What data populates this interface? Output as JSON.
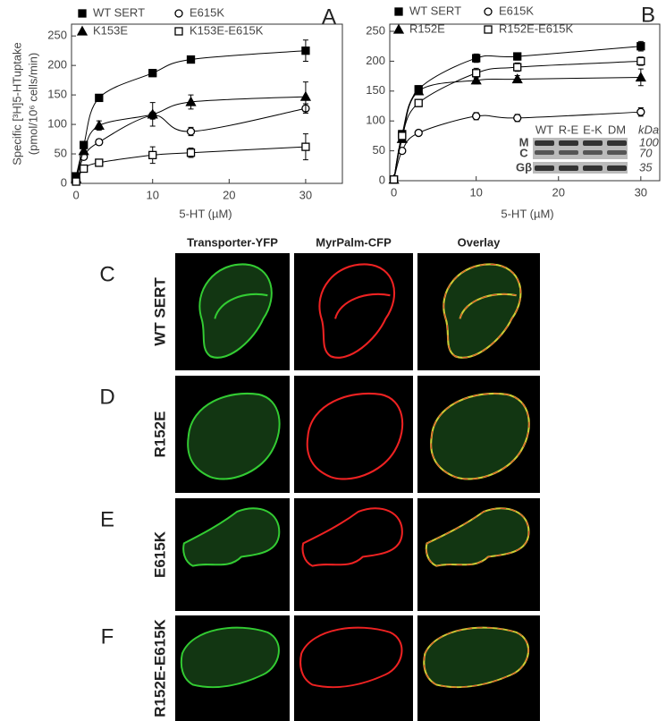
{
  "chart_data": [
    {
      "type": "line",
      "panel": "A",
      "xlabel": "5-HT (µM)",
      "ylabel": [
        "Specific [³H]5-HTuptake",
        "(pmol/10⁶ cells/min)"
      ],
      "x": [
        0,
        1,
        3,
        10,
        15,
        30
      ],
      "xlim": [
        -0.6,
        34.8
      ],
      "xticks": [
        0,
        10,
        20,
        30
      ],
      "ylim": [
        0,
        270
      ],
      "yticks": [
        0,
        50,
        100,
        150,
        200,
        250
      ],
      "grid": false,
      "series": [
        {
          "name": "WT SERT",
          "color": "#000000",
          "marker": "square-filled",
          "values": [
            12,
            65,
            145,
            187,
            210,
            225
          ],
          "errors": [
            3,
            5,
            6,
            6,
            5,
            18
          ]
        },
        {
          "name": "E615K",
          "color": "#000000",
          "marker": "circle-open",
          "values": [
            5,
            45,
            70,
            115,
            88,
            127
          ],
          "errors": [
            2,
            4,
            5,
            6,
            7,
            8
          ]
        },
        {
          "name": "K153E",
          "color": "#000000",
          "marker": "triangle-filled",
          "values": [
            8,
            55,
            98,
            117,
            138,
            147
          ],
          "errors": [
            2,
            5,
            8,
            20,
            12,
            25
          ]
        },
        {
          "name": "K153E-E615K",
          "color": "#000000",
          "marker": "square-open",
          "values": [
            3,
            25,
            35,
            48,
            52,
            62
          ],
          "errors": [
            2,
            4,
            5,
            14,
            8,
            22
          ]
        }
      ]
    },
    {
      "type": "line",
      "panel": "B",
      "xlabel": "5-HT (µM)",
      "x": [
        0,
        1,
        3,
        10,
        15,
        30
      ],
      "xlim": [
        -0.5,
        32.3
      ],
      "xticks": [
        0,
        10,
        20,
        30
      ],
      "ylim": [
        0,
        262
      ],
      "yticks": [
        0,
        50,
        100,
        150,
        200,
        250
      ],
      "grid": false,
      "series": [
        {
          "name": "WT SERT",
          "color": "#000000",
          "marker": "square-filled",
          "values": [
            2,
            78,
            153,
            205,
            208,
            225
          ],
          "errors": [
            2,
            5,
            6,
            7,
            6,
            8
          ]
        },
        {
          "name": "E615K",
          "color": "#000000",
          "marker": "circle-open",
          "values": [
            2,
            50,
            80,
            108,
            105,
            115
          ],
          "errors": [
            2,
            4,
            4,
            6,
            6,
            7
          ]
        },
        {
          "name": "R152E",
          "color": "#000000",
          "marker": "triangle-filled",
          "values": [
            2,
            70,
            150,
            168,
            170,
            173
          ],
          "errors": [
            2,
            5,
            6,
            6,
            6,
            14
          ]
        },
        {
          "name": "R152E-E615K",
          "color": "#000000",
          "marker": "square-open",
          "values": [
            2,
            75,
            130,
            180,
            190,
            200
          ],
          "errors": [
            2,
            5,
            6,
            8,
            7,
            7
          ]
        }
      ],
      "inset": {
        "lanes": [
          "WT",
          "R-E",
          "E-K",
          "DM"
        ],
        "unit": "kDa",
        "bands": [
          "M",
          "C",
          "Gβ"
        ],
        "markers": [
          "100",
          "70",
          "35"
        ]
      }
    }
  ],
  "micrographs": {
    "columns": [
      "Transporter-YFP",
      "MyrPalm-CFP",
      "Overlay"
    ],
    "rows": [
      {
        "letter": "C",
        "name": "WT SERT"
      },
      {
        "letter": "D",
        "name": "R152E"
      },
      {
        "letter": "E",
        "name": "E615K"
      },
      {
        "letter": "F",
        "name": "R152E-E615K"
      }
    ]
  }
}
